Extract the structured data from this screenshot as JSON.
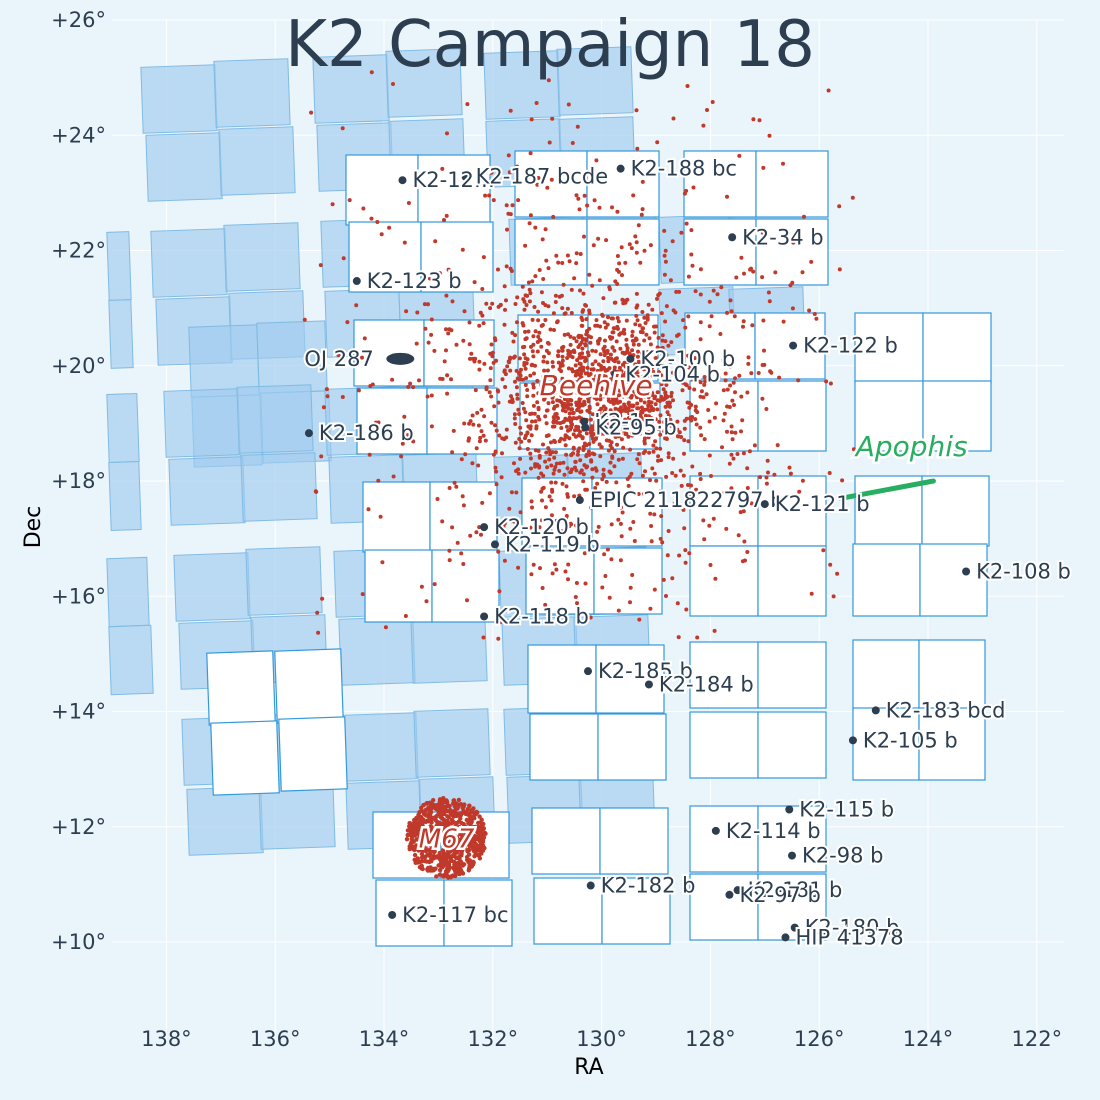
{
  "chart_data": {
    "type": "scatter",
    "title": "K2 Campaign 18",
    "xlabel": "RA",
    "ylabel": "Dec",
    "xlim": [
      139,
      121.5
    ],
    "ylim": [
      8.3,
      26
    ],
    "xticks": [
      138,
      136,
      134,
      132,
      130,
      128,
      126,
      124,
      122
    ],
    "xtick_labels": [
      "138°",
      "136°",
      "134°",
      "132°",
      "130°",
      "128°",
      "126°",
      "124°",
      "122°"
    ],
    "yticks": [
      10,
      12,
      14,
      16,
      18,
      20,
      22,
      24,
      26
    ],
    "ytick_labels": [
      "+10°",
      "+12°",
      "+14°",
      "+16°",
      "+18°",
      "+20°",
      "+22°",
      "+24°",
      "+26°"
    ],
    "grid": true,
    "colors": {
      "background": "#eaf4fb",
      "grid": "#ffffff",
      "text": "#2c3e50",
      "field_fill": "#ffffff",
      "field_stroke": "#3498db",
      "ghost_fill": "#9fcbee",
      "cluster": "#c0392b",
      "apophis": "#27ae60",
      "marker": "#2c3e50"
    },
    "planets": [
      {
        "name": "K2-12…",
        "ra": 133.66,
        "dec": 23.22
      },
      {
        "name": "K2-187 bcde",
        "ra": 132.5,
        "dec": 23.28
      },
      {
        "name": "K2-188 bc",
        "ra": 129.65,
        "dec": 23.42
      },
      {
        "name": "K2-34 b",
        "ra": 127.6,
        "dec": 22.23
      },
      {
        "name": "K2-123 b",
        "ra": 134.5,
        "dec": 21.47
      },
      {
        "name": "K2-122 b",
        "ra": 126.48,
        "dec": 20.35
      },
      {
        "name": "K2-100 b",
        "ra": 129.47,
        "dec": 20.12
      },
      {
        "name": "K2-104 b",
        "ra": 129.75,
        "dec": 19.85
      },
      {
        "name": "K2-186 b",
        "ra": 135.38,
        "dec": 18.83
      },
      {
        "name": "K2-1…",
        "ra": 130.32,
        "dec": 19.03
      },
      {
        "name": "K2-95 b",
        "ra": 130.3,
        "dec": 18.93
      },
      {
        "name": "EPIC 211822797 b",
        "ra": 130.4,
        "dec": 17.67
      },
      {
        "name": "K2-121 b",
        "ra": 127.0,
        "dec": 17.6
      },
      {
        "name": "K2-120 b",
        "ra": 132.16,
        "dec": 17.2
      },
      {
        "name": "K2-119 b",
        "ra": 131.96,
        "dec": 16.9
      },
      {
        "name": "K2-108 b",
        "ra": 123.3,
        "dec": 16.43
      },
      {
        "name": "K2-118 b",
        "ra": 132.16,
        "dec": 15.65
      },
      {
        "name": "K2-185 b",
        "ra": 130.25,
        "dec": 14.7
      },
      {
        "name": "K2-184 b",
        "ra": 129.13,
        "dec": 14.47
      },
      {
        "name": "K2-183 bcd",
        "ra": 124.96,
        "dec": 14.02
      },
      {
        "name": "K2-105 b",
        "ra": 125.38,
        "dec": 13.5
      },
      {
        "name": "K2-115 b",
        "ra": 126.55,
        "dec": 12.3
      },
      {
        "name": "K2-114 b",
        "ra": 127.9,
        "dec": 11.93
      },
      {
        "name": "K2-98 b",
        "ra": 126.5,
        "dec": 11.5
      },
      {
        "name": "K2-182 b",
        "ra": 130.2,
        "dec": 10.98
      },
      {
        "name": "K2-181 b",
        "ra": 127.5,
        "dec": 10.9
      },
      {
        "name": "K2-97 b",
        "ra": 127.65,
        "dec": 10.82
      },
      {
        "name": "K2-117 bc",
        "ra": 133.85,
        "dec": 10.47
      },
      {
        "name": "K2-180 b",
        "ra": 126.45,
        "dec": 10.25
      },
      {
        "name": "HIP 41378",
        "ra": 126.62,
        "dec": 10.08
      }
    ],
    "annotations": [
      {
        "name": "OJ 287",
        "ra": 133.7,
        "dec": 20.12,
        "kind": "blazar"
      },
      {
        "name": "Beehive",
        "ra": 130.1,
        "dec": 19.67,
        "kind": "cluster"
      },
      {
        "name": "M67",
        "ra": 132.85,
        "dec": 11.81,
        "kind": "cluster"
      },
      {
        "name": "Apophis",
        "ra": 124.3,
        "dec": 18.26,
        "kind": "asteroid",
        "track": [
          [
            125.6,
            17.7
          ],
          [
            123.9,
            18.0
          ]
        ]
      }
    ]
  }
}
